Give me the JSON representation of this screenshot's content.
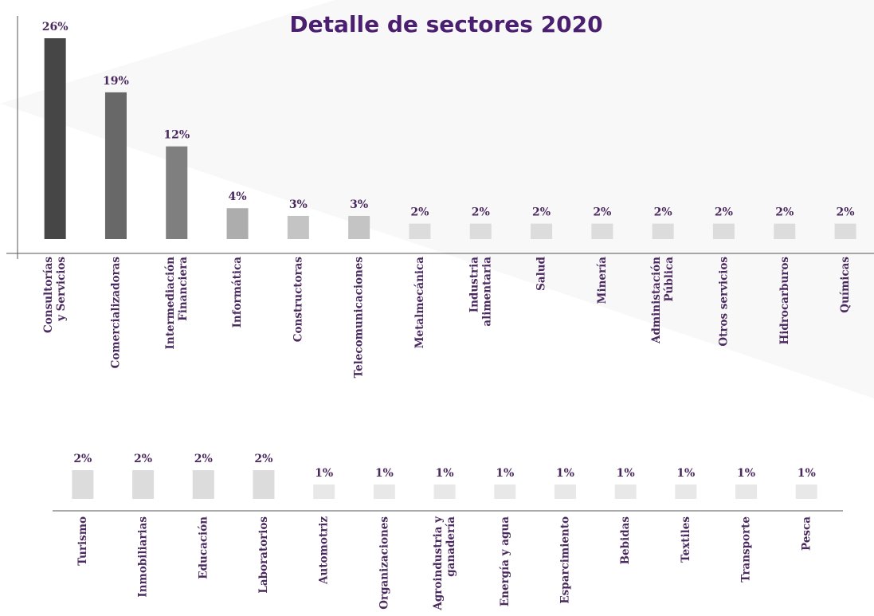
{
  "chart_data": [
    {
      "type": "bar",
      "title": "Detalle de sectores 2020",
      "categories": [
        "Consultorías\ny Servicios",
        "Comercializadoras",
        "Intermediación\nFinanciera",
        "Informática",
        "Constructoras",
        "Telecomunicaciones",
        "Metalmecánica",
        "Industria\nalimentaria",
        "Salud",
        "Minería",
        "Administación\nPública",
        "Otros servicios",
        "Hidrocarburos",
        "Químicas"
      ],
      "values": [
        26,
        19,
        12,
        4,
        3,
        3,
        2,
        2,
        2,
        2,
        2,
        2,
        2,
        2
      ],
      "value_labels": [
        "26%",
        "19%",
        "12%",
        "4%",
        "3%",
        "3%",
        "2%",
        "2%",
        "2%",
        "2%",
        "2%",
        "2%",
        "2%",
        "2%"
      ],
      "colors": [
        "#464646",
        "#686868",
        "#7f7f7f",
        "#adadad",
        "#c4c4c4",
        "#c4c4c4",
        "#dcdcdc",
        "#dcdcdc",
        "#dcdcdc",
        "#dcdcdc",
        "#dcdcdc",
        "#dcdcdc",
        "#dcdcdc",
        "#dcdcdc"
      ],
      "ylim": [
        0,
        26
      ]
    },
    {
      "type": "bar",
      "categories": [
        "Turismo",
        "Inmobiliarias",
        "Educación",
        "Laboratorios",
        "Automotriz",
        "Organizaciones",
        "Agroindustria y\nganadería",
        "Energía y agua",
        "Esparcimiento",
        "Bebidas",
        "Textiles",
        "Transporte",
        "Pesca"
      ],
      "values": [
        2,
        2,
        2,
        2,
        1,
        1,
        1,
        1,
        1,
        1,
        1,
        1,
        1
      ],
      "value_labels": [
        "2%",
        "2%",
        "2%",
        "2%",
        "1%",
        "1%",
        "1%",
        "1%",
        "1%",
        "1%",
        "1%",
        "1%",
        "1%"
      ],
      "colors": [
        "#dcdcdc",
        "#dcdcdc",
        "#dcdcdc",
        "#dcdcdc",
        "#e8e8e8",
        "#e8e8e8",
        "#e8e8e8",
        "#e8e8e8",
        "#e8e8e8",
        "#e8e8e8",
        "#e8e8e8",
        "#e8e8e8",
        "#e8e8e8"
      ],
      "ylim": [
        0,
        3
      ]
    }
  ]
}
